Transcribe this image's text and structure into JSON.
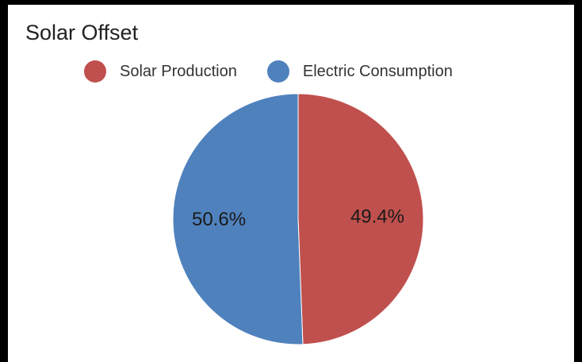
{
  "chart_data": {
    "type": "pie",
    "title": "Solar Offset",
    "legend_position": "top",
    "categories": [
      "Solar Production",
      "Electric Consumption"
    ],
    "values": [
      49.4,
      50.6
    ],
    "labels": [
      "49.4%",
      "50.6%"
    ],
    "colors": [
      "#c0504d",
      "#4f81bd"
    ],
    "start_angle_deg": 0,
    "direction": "clockwise"
  }
}
